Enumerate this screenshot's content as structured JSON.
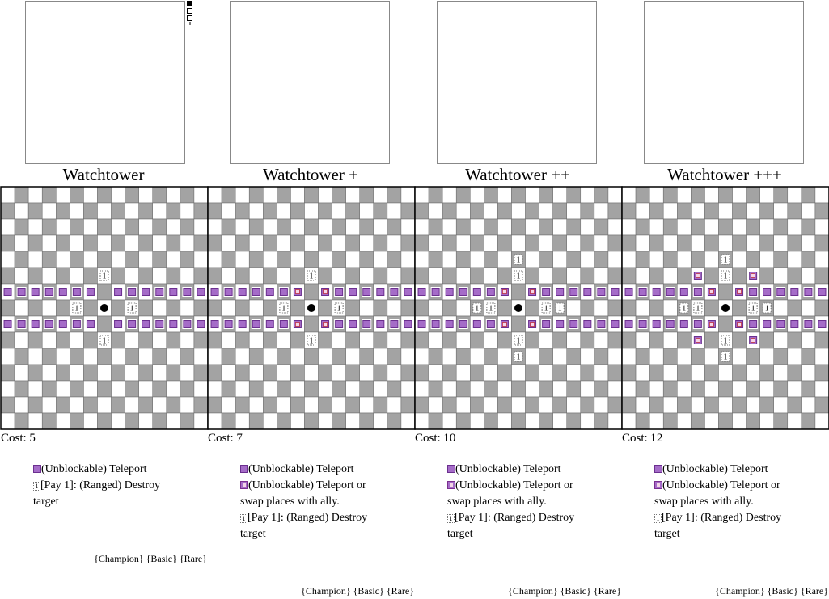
{
  "cards": [
    {
      "title": "Watchtower",
      "cost": "Cost: 5",
      "range_cost": "1",
      "abilities": [
        {
          "icon": "teleport",
          "text": "(Unblockable) Teleport"
        },
        {
          "icon": "range",
          "text": "[Pay 1]: (Ranged) Destroy target"
        }
      ],
      "tags": [
        "{Champion}",
        "{Basic}",
        "{Rare}"
      ]
    },
    {
      "title": "Watchtower +",
      "cost": "Cost: 7",
      "range_cost": "1",
      "abilities": [
        {
          "icon": "teleport",
          "text": "(Unblockable) Teleport"
        },
        {
          "icon": "swap",
          "text": "(Unblockable) Teleport or swap places with ally."
        },
        {
          "icon": "range",
          "text": "[Pay 1]: (Ranged) Destroy target"
        }
      ],
      "tags": [
        "{Champion}",
        "{Basic}",
        "{Rare}"
      ]
    },
    {
      "title": "Watchtower ++",
      "cost": "Cost: 10",
      "range_cost": "1",
      "abilities": [
        {
          "icon": "teleport",
          "text": "(Unblockable) Teleport"
        },
        {
          "icon": "swap",
          "text": "(Unblockable) Teleport or swap places with ally."
        },
        {
          "icon": "range",
          "text": "[Pay 1]: (Ranged) Destroy target"
        }
      ],
      "tags": [
        "{Champion}",
        "{Basic}",
        "{Rare}"
      ]
    },
    {
      "title": "Watchtower +++",
      "cost": "Cost: 12",
      "range_cost": "1",
      "abilities": [
        {
          "icon": "teleport",
          "text": "(Unblockable) Teleport"
        },
        {
          "icon": "swap",
          "text": "(Unblockable) Teleport or swap places with ally."
        },
        {
          "icon": "range",
          "text": "[Pay 1]: (Ranged) Destroy target"
        }
      ],
      "tags": [
        "{Champion}",
        "{Basic}",
        "{Rare}"
      ]
    }
  ]
}
